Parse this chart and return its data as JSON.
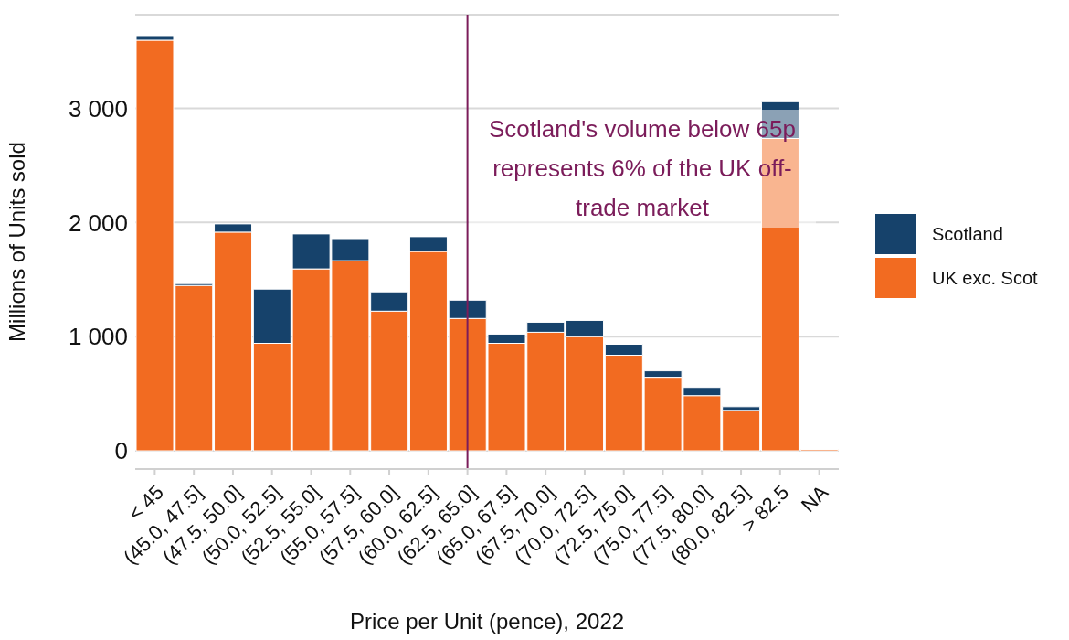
{
  "chart_data": {
    "type": "bar",
    "stacked": true,
    "xlabel": "Price per Unit (pence), 2022",
    "ylabel": "Millions of Units sold",
    "categories": [
      "< 45",
      "(45.0, 47.5]",
      "(47.5, 50.0]",
      "(50.0, 52.5]",
      "(52.5, 55.0]",
      "(55.0, 57.5]",
      "(57.5, 60.0]",
      "(60.0, 62.5]",
      "(62.5, 65.0]",
      "(65.0, 67.5]",
      "(67.5, 70.0]",
      "(70.0, 72.5]",
      "(72.5, 75.0]",
      "(75.0, 77.5]",
      "(77.5, 80.0]",
      "(80.0, 82.5]",
      "> 82.5",
      "NA"
    ],
    "series": [
      {
        "name": "UK exc. Scot",
        "color": "#f26b21",
        "values": [
          3596,
          1448,
          1915,
          941,
          1593,
          1665,
          1223,
          1746,
          1159,
          941,
          1038,
          1000,
          837,
          644,
          483,
          354,
          2735,
          12
        ]
      },
      {
        "name": "Scotland",
        "color": "#16426b",
        "values": [
          40,
          16,
          72,
          475,
          306,
          193,
          169,
          129,
          160,
          81,
          88,
          142,
          96,
          56,
          72,
          32,
          322,
          0
        ]
      }
    ],
    "ylim": [
      -160,
      3820
    ],
    "yticks": [
      0,
      {
        "value": 1000,
        "label": "1 000"
      },
      {
        "value": 2000,
        "label": "2 000"
      },
      {
        "value": 3000,
        "label": "3 000"
      }
    ],
    "grid": "y",
    "legend": "right",
    "ref_lines": [
      {
        "axis": "x",
        "value": "(62.5, 65.0]",
        "color": "#7b1c5a"
      }
    ],
    "annotations": [
      "Scotland's volume below 65p represents 6% of the UK off-trade market"
    ]
  }
}
